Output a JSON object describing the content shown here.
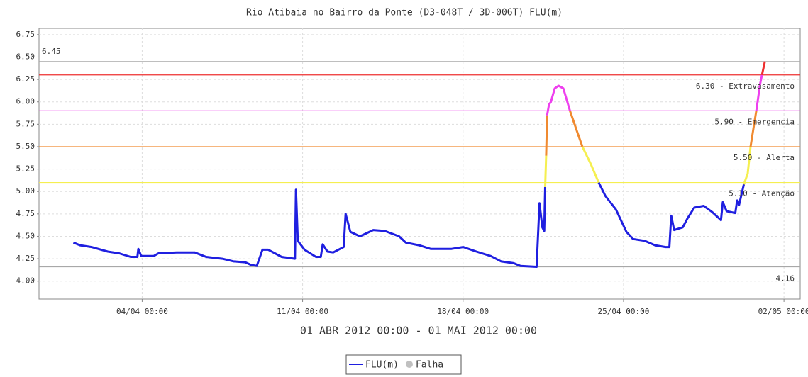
{
  "chart_data": {
    "type": "line",
    "title": "Rio Atibaia no Bairro da Ponte (D3-048T / 3D-006T) FLU(m)",
    "subtitle": "01 ABR 2012 00:00 - 01 MAI 2012 00:00",
    "x": [
      "2012-04-01T00:00",
      "2012-04-01T07:00",
      "2012-04-01T19:00",
      "2012-04-02T12:00",
      "2012-04-03T00:00",
      "2012-04-03T12:00",
      "2012-04-03T19:00",
      "2012-04-03T20:00",
      "2012-04-03T23:00",
      "2012-04-04T12:00",
      "2012-04-04T17:00",
      "2012-04-05T12:00",
      "2012-04-06T07:00",
      "2012-04-06T19:00",
      "2012-04-07T12:00",
      "2012-04-08T00:00",
      "2012-04-08T12:00",
      "2012-04-08T18:00",
      "2012-04-09T00:00",
      "2012-04-09T06:00",
      "2012-04-09T12:00",
      "2012-04-10T02:00",
      "2012-04-10T16:00",
      "2012-04-10T17:00",
      "2012-04-10T19:00",
      "2012-04-11T02:00",
      "2012-04-11T14:00",
      "2012-04-11T19:00",
      "2012-04-11T21:00",
      "2012-04-12T02:00",
      "2012-04-12T08:00",
      "2012-04-12T19:00",
      "2012-04-12T21:00",
      "2012-04-13T02:00",
      "2012-04-13T12:00",
      "2012-04-14T02:00",
      "2012-04-14T14:00",
      "2012-04-15T05:00",
      "2012-04-15T12:00",
      "2012-04-16T02:00",
      "2012-04-16T14:00",
      "2012-04-17T12:00",
      "2012-04-18T00:00",
      "2012-04-18T14:00",
      "2012-04-19T05:00",
      "2012-04-19T16:00",
      "2012-04-20T05:00",
      "2012-04-20T12:00",
      "2012-04-21T05:00",
      "2012-04-21T08:00",
      "2012-04-21T11:00",
      "2012-04-21T13:00",
      "2012-04-21T14:00",
      "2012-04-21T15:00",
      "2012-04-21T16:00",
      "2012-04-21T18:00",
      "2012-04-21T20:00",
      "2012-04-22T00:00",
      "2012-04-22T04:00",
      "2012-04-22T09:00",
      "2012-04-22T16:00",
      "2012-04-23T00:00",
      "2012-04-23T05:00",
      "2012-04-23T14:00",
      "2012-04-23T22:00",
      "2012-04-24T05:00",
      "2012-04-24T16:00",
      "2012-04-25T03:00",
      "2012-04-25T10:00",
      "2012-04-25T22:00",
      "2012-04-26T09:00",
      "2012-04-26T20:00",
      "2012-04-27T00:00",
      "2012-04-27T02:00",
      "2012-04-27T05:00",
      "2012-04-27T14:00",
      "2012-04-27T19:00",
      "2012-04-28T02:00",
      "2012-04-28T12:00",
      "2012-04-28T21:00",
      "2012-04-29T06:00",
      "2012-04-29T08:00",
      "2012-04-29T12:00",
      "2012-04-29T21:00",
      "2012-04-29T23:00",
      "2012-04-30T01:00",
      "2012-04-30T06:00",
      "2012-04-30T10:00",
      "2012-04-30T13:00",
      "2012-04-30T16:00",
      "2012-04-30T19:00",
      "2012-04-30T23:00",
      "2012-05-01T01:00",
      "2012-05-01T04:00"
    ],
    "series": [
      {
        "name": "FLU(m)",
        "color": "#1f1fe0",
        "values": [
          4.43,
          4.4,
          4.38,
          4.33,
          4.31,
          4.27,
          4.27,
          4.36,
          4.28,
          4.28,
          4.31,
          4.32,
          4.32,
          4.27,
          4.25,
          4.22,
          4.21,
          4.18,
          4.17,
          4.35,
          4.35,
          4.27,
          4.25,
          5.02,
          4.45,
          4.35,
          4.27,
          4.27,
          4.41,
          4.33,
          4.32,
          4.38,
          4.75,
          4.55,
          4.5,
          4.57,
          4.56,
          4.5,
          4.43,
          4.4,
          4.36,
          4.36,
          4.38,
          4.33,
          4.28,
          4.22,
          4.2,
          4.17,
          4.16,
          4.87,
          4.6,
          4.56,
          5.05,
          5.4,
          5.85,
          5.97,
          6.0,
          6.15,
          6.18,
          6.15,
          5.9,
          5.65,
          5.5,
          5.3,
          5.1,
          4.95,
          4.8,
          4.55,
          4.47,
          4.45,
          4.4,
          4.38,
          4.38,
          4.73,
          4.57,
          4.6,
          4.7,
          4.82,
          4.84,
          4.77,
          4.68,
          4.88,
          4.78,
          4.76,
          4.9,
          4.85,
          5.08,
          5.2,
          5.5,
          5.7,
          5.9,
          6.2,
          6.3,
          6.45
        ]
      }
    ],
    "legend_extra": [
      {
        "name": "Falha",
        "color": "#c0c0c0"
      }
    ],
    "alert_levels": [
      {
        "value": 5.1,
        "label": "5.10 - Atenção",
        "color": "#f5ef50"
      },
      {
        "value": 5.5,
        "label": "5.50 - Alerta",
        "color": "#f08a30"
      },
      {
        "value": 5.9,
        "label": "5.90 - Emergencia",
        "color": "#ee40ee"
      },
      {
        "value": 6.3,
        "label": "6.30 - Extravasamento",
        "color": "#ee3030"
      }
    ],
    "max": {
      "value": 6.45,
      "label": "6.45",
      "color": "#a8a8a8"
    },
    "min": {
      "value": 4.16,
      "label": "4.16",
      "color": "#a8a8a8"
    },
    "xlim": [
      "2012-03-30T12:00",
      "2012-05-02T17:00"
    ],
    "xticks": [
      {
        "value": "2012-04-04T00:00",
        "label": "04/04 00:00"
      },
      {
        "value": "2012-04-11T00:00",
        "label": "11/04 00:00"
      },
      {
        "value": "2012-04-18T00:00",
        "label": "18/04 00:00"
      },
      {
        "value": "2012-04-25T00:00",
        "label": "25/04 00:00"
      },
      {
        "value": "2012-05-02T00:00",
        "label": "02/05 00:00"
      }
    ],
    "ylim": [
      3.8,
      6.82
    ],
    "yticks": [
      {
        "value": 4,
        "label": "4.00"
      },
      {
        "value": 4.25,
        "label": "4.25"
      },
      {
        "value": 4.5,
        "label": "4.50"
      },
      {
        "value": 4.75,
        "label": "4.75"
      },
      {
        "value": 5,
        "label": "5.00"
      },
      {
        "value": 5.25,
        "label": "5.25"
      },
      {
        "value": 5.5,
        "label": "5.50"
      },
      {
        "value": 5.75,
        "label": "5.75"
      },
      {
        "value": 6,
        "label": "6.00"
      },
      {
        "value": 6.25,
        "label": "6.25"
      },
      {
        "value": 6.5,
        "label": "6.50"
      },
      {
        "value": 6.75,
        "label": "6.75"
      }
    ],
    "grid": true
  }
}
